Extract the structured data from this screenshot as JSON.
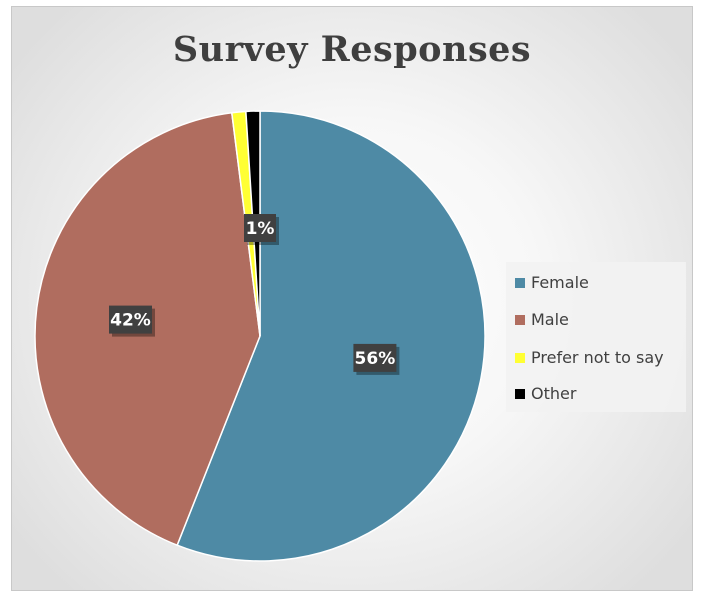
{
  "chart_data": {
    "type": "pie",
    "title": "Survey Responses",
    "categories": [
      "Female",
      "Male",
      "Prefer not to say",
      "Other"
    ],
    "values": [
      56,
      42,
      1,
      1
    ],
    "data_labels": [
      "56%",
      "42%",
      "1%",
      ""
    ],
    "colors": [
      "#4e8aa5",
      "#b06d5f",
      "#ffff33",
      "#000000"
    ],
    "legend_position": "right",
    "start_angle_deg": 0,
    "direction": "clockwise"
  }
}
